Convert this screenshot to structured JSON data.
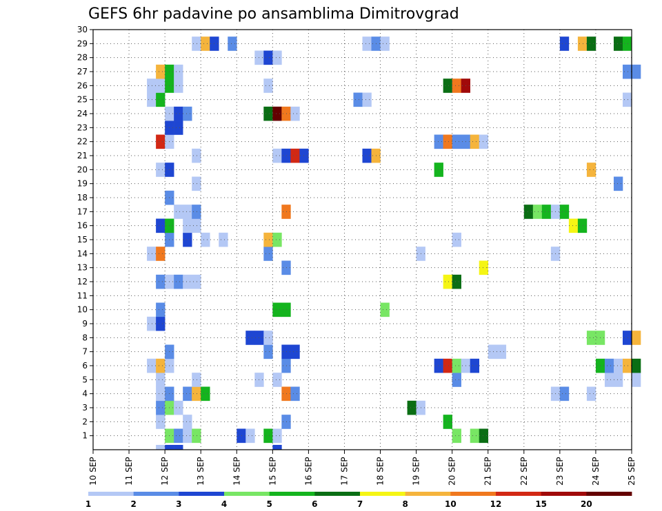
{
  "chart_data": {
    "type": "heatmap",
    "title": "GEFS 6hr padavine po ansamblima Dimitrovgrad",
    "xlabel": "",
    "ylabel": "",
    "x_tick_labels": [
      "10 SEP",
      "11 SEP",
      "12 SEP",
      "13 SEP",
      "14 SEP",
      "15 SEP",
      "16 SEP",
      "17 SEP",
      "18 SEP",
      "19 SEP",
      "20 SEP",
      "21 SEP",
      "22 SEP",
      "23 SEP",
      "24 SEP",
      "25 SEP"
    ],
    "x_range_days": [
      10,
      25
    ],
    "y_tick_labels": [
      "1",
      "2",
      "3",
      "4",
      "5",
      "6",
      "7",
      "8",
      "9",
      "10",
      "11",
      "12",
      "13",
      "14",
      "15",
      "16",
      "17",
      "18",
      "19",
      "20",
      "21",
      "22",
      "23",
      "24",
      "25",
      "26",
      "27",
      "28",
      "29",
      "30"
    ],
    "y_range": [
      0,
      30
    ],
    "grid": true,
    "colorbar": {
      "labels": [
        "1",
        "2",
        "3",
        "4",
        "5",
        "6",
        "7",
        "8",
        "10",
        "12",
        "15",
        "20"
      ],
      "colors": [
        "#b4c8f5",
        "#5a8ce6",
        "#1e46d2",
        "#78e664",
        "#14b41e",
        "#0a6e14",
        "#f5f514",
        "#f5b43c",
        "#f0781e",
        "#d22814",
        "#a00a0a",
        "#640000"
      ]
    },
    "cells_format": "[day, member, bin] — day = forecast time in days (cell start), member = ensemble number, bin = colour index 0-11",
    "cells": [
      [
        12.0,
        1,
        3
      ],
      [
        12.25,
        1,
        1
      ],
      [
        12.5,
        1,
        0
      ],
      [
        12.75,
        1,
        3
      ],
      [
        14.0,
        1,
        2
      ],
      [
        14.25,
        1,
        0
      ],
      [
        14.75,
        1,
        4
      ],
      [
        15.0,
        1,
        0
      ],
      [
        15.0,
        0,
        2
      ],
      [
        11.75,
        0,
        0
      ],
      [
        12.0,
        0,
        2
      ],
      [
        12.25,
        0,
        2
      ],
      [
        20.0,
        1,
        3
      ],
      [
        20.5,
        1,
        3
      ],
      [
        20.75,
        1,
        5
      ],
      [
        11.75,
        2,
        0
      ],
      [
        12.5,
        2,
        0
      ],
      [
        15.25,
        2,
        1
      ],
      [
        19.75,
        2,
        4
      ],
      [
        11.75,
        3,
        1
      ],
      [
        12.0,
        3,
        3
      ],
      [
        12.25,
        3,
        0
      ],
      [
        18.75,
        3,
        5
      ],
      [
        19.0,
        3,
        0
      ],
      [
        11.75,
        4,
        0
      ],
      [
        12.0,
        4,
        1
      ],
      [
        12.5,
        4,
        1
      ],
      [
        12.75,
        4,
        7
      ],
      [
        13.0,
        4,
        4
      ],
      [
        15.25,
        4,
        8
      ],
      [
        15.5,
        4,
        1
      ],
      [
        22.75,
        4,
        0
      ],
      [
        23.0,
        4,
        1
      ],
      [
        23.75,
        4,
        0
      ],
      [
        11.75,
        5,
        0
      ],
      [
        12.75,
        5,
        0
      ],
      [
        14.5,
        5,
        0
      ],
      [
        15.0,
        5,
        0
      ],
      [
        20.0,
        5,
        1
      ],
      [
        24.25,
        5,
        0
      ],
      [
        24.5,
        5,
        0
      ],
      [
        25.0,
        5,
        0
      ],
      [
        11.5,
        6,
        0
      ],
      [
        11.75,
        6,
        7
      ],
      [
        12.0,
        6,
        0
      ],
      [
        15.25,
        6,
        1
      ],
      [
        19.5,
        6,
        2
      ],
      [
        19.75,
        6,
        9
      ],
      [
        20.0,
        6,
        3
      ],
      [
        20.25,
        6,
        0
      ],
      [
        20.5,
        6,
        2
      ],
      [
        24.0,
        6,
        4
      ],
      [
        24.25,
        6,
        1
      ],
      [
        24.5,
        6,
        0
      ],
      [
        24.75,
        6,
        7
      ],
      [
        25.0,
        6,
        5
      ],
      [
        12.0,
        7,
        1
      ],
      [
        14.75,
        7,
        1
      ],
      [
        15.25,
        7,
        2
      ],
      [
        15.5,
        7,
        2
      ],
      [
        21.0,
        7,
        0
      ],
      [
        21.25,
        7,
        0
      ],
      [
        14.25,
        8,
        2
      ],
      [
        14.5,
        8,
        2
      ],
      [
        14.75,
        8,
        0
      ],
      [
        23.75,
        8,
        3
      ],
      [
        24.0,
        8,
        3
      ],
      [
        24.75,
        8,
        2
      ],
      [
        25.0,
        8,
        7
      ],
      [
        11.5,
        9,
        0
      ],
      [
        11.75,
        9,
        2
      ],
      [
        11.75,
        10,
        1
      ],
      [
        15.0,
        10,
        4
      ],
      [
        15.25,
        10,
        4
      ],
      [
        18.0,
        10,
        3
      ],
      [
        11.75,
        12,
        1
      ],
      [
        12.0,
        12,
        0
      ],
      [
        12.25,
        12,
        1
      ],
      [
        12.5,
        12,
        0
      ],
      [
        12.75,
        12,
        0
      ],
      [
        19.75,
        12,
        6
      ],
      [
        20.0,
        12,
        5
      ],
      [
        15.25,
        13,
        1
      ],
      [
        20.75,
        13,
        6
      ],
      [
        11.5,
        14,
        0
      ],
      [
        11.75,
        14,
        8
      ],
      [
        14.75,
        14,
        1
      ],
      [
        19.0,
        14,
        0
      ],
      [
        22.75,
        14,
        0
      ],
      [
        12.0,
        15,
        1
      ],
      [
        12.5,
        15,
        2
      ],
      [
        13.0,
        15,
        0
      ],
      [
        13.5,
        15,
        0
      ],
      [
        14.75,
        15,
        7
      ],
      [
        15.0,
        15,
        3
      ],
      [
        20.0,
        15,
        0
      ],
      [
        11.75,
        16,
        2
      ],
      [
        12.0,
        16,
        4
      ],
      [
        12.5,
        16,
        0
      ],
      [
        12.75,
        16,
        0
      ],
      [
        23.25,
        16,
        6
      ],
      [
        23.5,
        16,
        4
      ],
      [
        12.25,
        17,
        0
      ],
      [
        12.5,
        17,
        0
      ],
      [
        12.75,
        17,
        1
      ],
      [
        15.25,
        17,
        8
      ],
      [
        22.0,
        17,
        5
      ],
      [
        22.25,
        17,
        3
      ],
      [
        22.5,
        17,
        4
      ],
      [
        22.75,
        17,
        0
      ],
      [
        23.0,
        17,
        4
      ],
      [
        12.0,
        18,
        1
      ],
      [
        12.75,
        19,
        0
      ],
      [
        24.5,
        19,
        1
      ],
      [
        11.75,
        20,
        0
      ],
      [
        12.0,
        20,
        2
      ],
      [
        19.5,
        20,
        4
      ],
      [
        23.75,
        20,
        7
      ],
      [
        12.75,
        21,
        0
      ],
      [
        15.0,
        21,
        0
      ],
      [
        15.25,
        21,
        2
      ],
      [
        15.5,
        21,
        9
      ],
      [
        15.75,
        21,
        2
      ],
      [
        17.5,
        21,
        2
      ],
      [
        17.75,
        21,
        7
      ],
      [
        11.75,
        22,
        9
      ],
      [
        12.0,
        22,
        0
      ],
      [
        19.5,
        22,
        1
      ],
      [
        19.75,
        22,
        8
      ],
      [
        20.0,
        22,
        1
      ],
      [
        20.25,
        22,
        1
      ],
      [
        20.5,
        22,
        7
      ],
      [
        20.75,
        22,
        0
      ],
      [
        12.0,
        23,
        2
      ],
      [
        12.25,
        23,
        2
      ],
      [
        12.0,
        24,
        0
      ],
      [
        12.25,
        24,
        2
      ],
      [
        12.5,
        24,
        1
      ],
      [
        14.75,
        24,
        5
      ],
      [
        15.0,
        24,
        11
      ],
      [
        15.25,
        24,
        8
      ],
      [
        15.5,
        24,
        0
      ],
      [
        11.5,
        25,
        0
      ],
      [
        11.75,
        25,
        4
      ],
      [
        17.25,
        25,
        1
      ],
      [
        17.5,
        25,
        0
      ],
      [
        24.75,
        25,
        0
      ],
      [
        11.5,
        26,
        0
      ],
      [
        11.75,
        26,
        0
      ],
      [
        12.0,
        26,
        4
      ],
      [
        12.25,
        26,
        0
      ],
      [
        14.75,
        26,
        0
      ],
      [
        19.75,
        26,
        5
      ],
      [
        20.0,
        26,
        8
      ],
      [
        20.25,
        26,
        10
      ],
      [
        11.75,
        27,
        7
      ],
      [
        12.0,
        27,
        4
      ],
      [
        12.25,
        27,
        0
      ],
      [
        24.75,
        27,
        1
      ],
      [
        25.0,
        27,
        1
      ],
      [
        14.5,
        28,
        0
      ],
      [
        14.75,
        28,
        2
      ],
      [
        15.0,
        28,
        0
      ],
      [
        12.75,
        29,
        0
      ],
      [
        13.0,
        29,
        7
      ],
      [
        13.25,
        29,
        2
      ],
      [
        13.75,
        29,
        1
      ],
      [
        17.5,
        29,
        0
      ],
      [
        17.75,
        29,
        1
      ],
      [
        18.0,
        29,
        0
      ],
      [
        23.0,
        29,
        2
      ],
      [
        23.5,
        29,
        7
      ],
      [
        23.75,
        29,
        5
      ],
      [
        24.5,
        29,
        5
      ],
      [
        24.75,
        29,
        4
      ]
    ]
  }
}
